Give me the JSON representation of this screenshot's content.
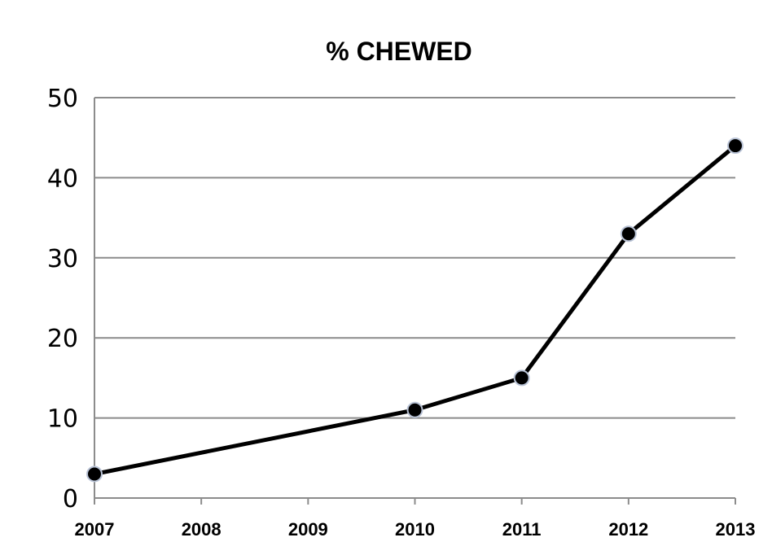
{
  "chart_data": {
    "type": "line",
    "title": "% CHEWED",
    "xlabel": "",
    "ylabel": "",
    "x": [
      2007,
      2008,
      2009,
      2010,
      2011,
      2012,
      2013
    ],
    "ylim": [
      0,
      50
    ],
    "yticks": [
      0,
      10,
      20,
      30,
      40,
      50
    ],
    "grid": true,
    "series": [
      {
        "name": "% CHEWED",
        "points": [
          {
            "x": 2007,
            "y": 3
          },
          {
            "x": 2010,
            "y": 11
          },
          {
            "x": 2011,
            "y": 15
          },
          {
            "x": 2012,
            "y": 33
          },
          {
            "x": 2013,
            "y": 44
          }
        ],
        "color": "#000000"
      }
    ]
  }
}
